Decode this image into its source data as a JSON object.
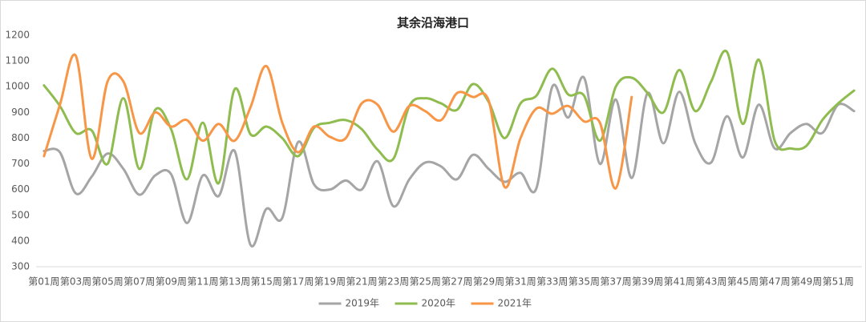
{
  "chart_data": {
    "type": "line",
    "title": "其余沿海港口",
    "categories": [
      "第01周",
      null,
      "第03周",
      null,
      "第05周",
      null,
      "第07周",
      null,
      "第09周",
      null,
      "第11周",
      null,
      "第13周",
      null,
      "第15周",
      null,
      "第17周",
      null,
      "第19周",
      null,
      "第21周",
      null,
      "第23周",
      null,
      "第25周",
      null,
      "第27周",
      null,
      "第29周",
      null,
      "第31周",
      null,
      "第33周",
      null,
      "第35周",
      null,
      "第37周",
      null,
      "第39周",
      null,
      "第41周",
      null,
      "第43周",
      null,
      "第45周",
      null,
      "第47周",
      null,
      "第49周",
      null,
      "第51周",
      null
    ],
    "series": [
      {
        "name": "2019年",
        "color": "#a5a5a5",
        "values": [
          750,
          745,
          585,
          650,
          740,
          680,
          580,
          655,
          660,
          470,
          655,
          575,
          750,
          385,
          525,
          490,
          785,
          620,
          600,
          635,
          600,
          710,
          535,
          640,
          705,
          690,
          640,
          735,
          680,
          630,
          665,
          605,
          1000,
          880,
          1035,
          700,
          950,
          645,
          975,
          780,
          980,
          780,
          705,
          885,
          725,
          930,
          760,
          820,
          855,
          820,
          930,
          905
        ]
      },
      {
        "name": "2020年",
        "color": "#8fbc4f",
        "values": [
          1005,
          925,
          820,
          830,
          700,
          955,
          680,
          910,
          835,
          640,
          860,
          625,
          990,
          815,
          845,
          800,
          730,
          840,
          860,
          870,
          835,
          755,
          720,
          925,
          955,
          935,
          910,
          1010,
          940,
          800,
          935,
          965,
          1070,
          970,
          965,
          790,
          1000,
          1035,
          975,
          900,
          1065,
          905,
          1020,
          1135,
          855,
          1105,
          790,
          760,
          770,
          870,
          935,
          985
        ]
      },
      {
        "name": "2021年",
        "color": "#f79646",
        "values": [
          730,
          930,
          1120,
          720,
          1020,
          1020,
          820,
          900,
          845,
          870,
          790,
          855,
          790,
          920,
          1080,
          860,
          745,
          845,
          805,
          800,
          935,
          930,
          825,
          925,
          905,
          870,
          975,
          960,
          945,
          610,
          800,
          915,
          895,
          925,
          865,
          860,
          605,
          960,
          null,
          null,
          null,
          null,
          null,
          null,
          null,
          null,
          null,
          null,
          null,
          null,
          null,
          null
        ]
      }
    ],
    "ylim": [
      300,
      1200
    ],
    "yticks": [
      300,
      400,
      500,
      600,
      700,
      800,
      900,
      1000,
      1100,
      1200
    ],
    "legend": "bottom"
  }
}
